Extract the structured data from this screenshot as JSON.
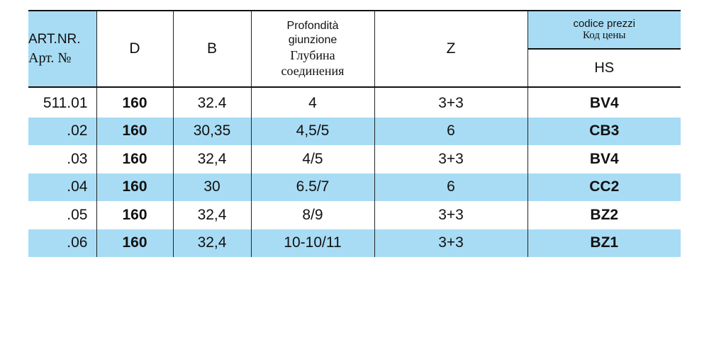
{
  "header": {
    "art_line1": "ART.NR.",
    "art_line2": "Арт. №",
    "d": "D",
    "b": "B",
    "prof_line1": "Profondità",
    "prof_line2": "giunzione",
    "prof_ru_line1": "Глубина",
    "prof_ru_line2": "соединения",
    "z": "Z",
    "codice_line1": "codice prezzi",
    "codice_ru": "Код цены",
    "hs": "HS"
  },
  "rows": [
    {
      "art": "511.01",
      "d": "160",
      "b": "32.4",
      "prof": "4",
      "z": "3+3",
      "code": "BV4"
    },
    {
      "art": ".02",
      "d": "160",
      "b": "30,35",
      "prof": "4,5/5",
      "z": "6",
      "code": "CB3"
    },
    {
      "art": ".03",
      "d": "160",
      "b": "32,4",
      "prof": "4/5",
      "z": "3+3",
      "code": "BV4"
    },
    {
      "art": ".04",
      "d": "160",
      "b": "30",
      "prof": "6.5/7",
      "z": "6",
      "code": "CC2"
    },
    {
      "art": ".05",
      "d": "160",
      "b": "32,4",
      "prof": "8/9",
      "z": "3+3",
      "code": "BZ2"
    },
    {
      "art": ".06",
      "d": "160",
      "b": "32,4",
      "prof": "10-10/11",
      "z": "3+3",
      "code": "BZ1"
    }
  ],
  "colors": {
    "shade": "#a8dcf4",
    "lines": "#111111"
  }
}
